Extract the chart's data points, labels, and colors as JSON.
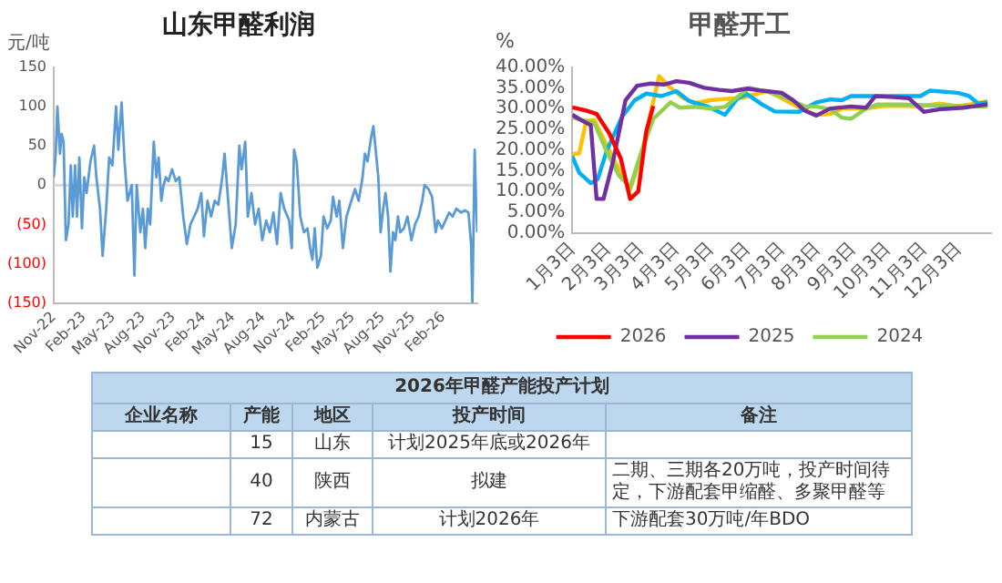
{
  "chart_data": [
    {
      "type": "line",
      "title": "山东甲醛利润",
      "ylabel": "元/吨",
      "color": "#5b9bd5",
      "marker": "none",
      "x": [
        "2022-11-01",
        "2022-11-07",
        "2022-11-12",
        "2022-11-20",
        "2022-11-25",
        "2022-12-01",
        "2022-12-08",
        "2022-12-16",
        "2022-12-23",
        "2022-12-29",
        "2023-01-05",
        "2023-01-11",
        "2023-01-18",
        "2023-01-26",
        "2023-02-02",
        "2023-02-09",
        "2023-02-21",
        "2023-03-04",
        "2023-03-11",
        "2023-03-22",
        "2023-03-30",
        "2023-04-10",
        "2023-04-19",
        "2023-04-29",
        "2023-05-10",
        "2023-05-17",
        "2023-05-27",
        "2023-06-05",
        "2023-06-14",
        "2023-06-27",
        "2023-07-05",
        "2023-07-12",
        "2023-07-23",
        "2023-07-31",
        "2023-08-07",
        "2023-08-15",
        "2023-08-22",
        "2023-09-02",
        "2023-09-10",
        "2023-09-17",
        "2023-09-25",
        "2023-10-02",
        "2023-10-09",
        "2023-10-17",
        "2023-10-28",
        "2023-11-08",
        "2023-11-19",
        "2023-12-01",
        "2023-12-12",
        "2023-12-23",
        "2024-01-03",
        "2024-01-14",
        "2024-01-25",
        "2024-02-02",
        "2024-02-13",
        "2024-02-24",
        "2024-03-06",
        "2024-03-17",
        "2024-03-29",
        "2024-04-05",
        "2024-04-16",
        "2024-04-27",
        "2024-05-09",
        "2024-05-20",
        "2024-05-27",
        "2024-06-07",
        "2024-06-15",
        "2024-06-26",
        "2024-07-07",
        "2024-07-18",
        "2024-07-29",
        "2024-08-10",
        "2024-08-21",
        "2024-09-01",
        "2024-09-12",
        "2024-09-23",
        "2024-10-04",
        "2024-10-19",
        "2024-10-27",
        "2024-11-03",
        "2024-11-11",
        "2024-11-22",
        "2024-12-03",
        "2024-12-14",
        "2024-12-22",
        "2024-12-29",
        "2025-01-05",
        "2025-01-13",
        "2025-01-24",
        "2025-02-01",
        "2025-02-12",
        "2025-02-23",
        "2025-03-02",
        "2025-03-13",
        "2025-03-21",
        "2025-04-01",
        "2025-04-12",
        "2025-04-23",
        "2025-05-08",
        "2025-05-19",
        "2025-05-31",
        "2025-06-07",
        "2025-06-15",
        "2025-06-26",
        "2025-07-03",
        "2025-07-11",
        "2025-07-18",
        "2025-07-25",
        "2025-08-02",
        "2025-08-09",
        "2025-08-17",
        "2025-08-24",
        "2025-09-01",
        "2025-09-08",
        "2025-09-16",
        "2025-09-23",
        "2025-10-04",
        "2025-10-15",
        "2025-10-27",
        "2025-11-07",
        "2025-11-18",
        "2025-11-29",
        "2025-12-06",
        "2025-12-18",
        "2025-12-29",
        "2026-01-09",
        "2026-01-16",
        "2026-01-28",
        "2026-02-08",
        "2026-02-19",
        "2026-03-02",
        "2026-03-13",
        "2026-03-28",
        "2026-04-08",
        "2026-04-19",
        "2026-04-27",
        "2026-05-01",
        "2026-05-08",
        "2026-05-12",
        "2026-05-16"
      ],
      "values": [
        10,
        40,
        100,
        40,
        65,
        55,
        -70,
        -50,
        25,
        -40,
        25,
        -40,
        35,
        -55,
        10,
        -10,
        30,
        50,
        10,
        -30,
        -90,
        -30,
        35,
        25,
        100,
        45,
        105,
        30,
        -20,
        0,
        -115,
        0,
        -60,
        -30,
        -80,
        -30,
        -50,
        55,
        10,
        35,
        -20,
        0,
        10,
        5,
        20,
        5,
        10,
        -40,
        -75,
        -50,
        -40,
        -30,
        -10,
        -65,
        -20,
        -40,
        -20,
        -25,
        10,
        40,
        -20,
        -80,
        -50,
        50,
        20,
        55,
        -40,
        -10,
        -50,
        -30,
        -70,
        -45,
        -60,
        -35,
        -75,
        -10,
        -30,
        -45,
        -80,
        45,
        30,
        -40,
        -60,
        -55,
        -80,
        -95,
        -55,
        -105,
        -90,
        -40,
        -55,
        -45,
        -15,
        -40,
        -20,
        -80,
        -40,
        -25,
        -5,
        -20,
        10,
        40,
        30,
        60,
        75,
        40,
        10,
        -60,
        -30,
        -10,
        -40,
        -110,
        -60,
        -70,
        -40,
        -60,
        -55,
        -40,
        -70,
        -50,
        -40,
        -20,
        0,
        -5,
        -15,
        -60,
        -45,
        -55,
        -45,
        -35,
        -40,
        -30,
        -35,
        -32,
        -35,
        -75,
        -150,
        45,
        -20,
        -60
      ],
      "xlim": [
        "2022-11-01",
        "2026-05-16"
      ],
      "xticks": [
        {
          "value": "2022-11-01",
          "label": "Nov-22"
        },
        {
          "value": "2023-02-01",
          "label": "Feb-23"
        },
        {
          "value": "2023-05-01",
          "label": "May-23"
        },
        {
          "value": "2023-08-01",
          "label": "Aug-23"
        },
        {
          "value": "2023-11-01",
          "label": "Nov-23"
        },
        {
          "value": "2024-02-01",
          "label": "Feb-24"
        },
        {
          "value": "2024-05-01",
          "label": "May-24"
        },
        {
          "value": "2024-08-01",
          "label": "Aug-24"
        },
        {
          "value": "2024-11-01",
          "label": "Nov-24"
        },
        {
          "value": "2025-02-01",
          "label": "Feb-25"
        },
        {
          "value": "2025-05-01",
          "label": "May-25"
        },
        {
          "value": "2025-08-01",
          "label": "Aug-25"
        },
        {
          "value": "2025-11-01",
          "label": "Nov-25"
        },
        {
          "value": "2026-02-01",
          "label": "Feb-26"
        }
      ],
      "ylim": [
        -150,
        150
      ],
      "yticks": [
        {
          "value": -150,
          "label": "(150)"
        },
        {
          "value": -100,
          "label": "(100)"
        },
        {
          "value": -50,
          "label": "(50)"
        },
        0,
        50,
        100,
        150
      ],
      "ref_lines": [
        {
          "axis": "y",
          "value": 0,
          "color": "#d9d9d9"
        }
      ]
    },
    {
      "type": "line",
      "title": "甲醛开工",
      "ylabel": "%",
      "marker": "none",
      "legend": "bottom",
      "series": [
        {
          "name": "2026",
          "color": "#ff0000",
          "x": [
            "--01-03",
            "--01-15",
            "--01-24",
            "--02-04",
            "--02-14",
            "--02-22",
            "--03-01",
            "--03-08",
            "--03-14"
          ],
          "values": [
            30.3,
            29.5,
            28.7,
            24,
            17.9,
            8.2,
            10,
            24.5,
            30.6
          ]
        },
        {
          "name": "2025",
          "color": "#7030a0",
          "x": [
            "--01-03",
            "--01-12",
            "--01-19",
            "--01-24",
            "--01-30",
            "--02-07",
            "--02-18",
            "--02-28",
            "--03-11",
            "--03-24",
            "--04-03",
            "--04-14",
            "--04-27",
            "--05-10",
            "--05-21",
            "--06-03",
            "--06-16",
            "--07-03",
            "--07-13",
            "--07-23",
            "--08-02",
            "--08-14",
            "--09-01",
            "--09-14",
            "--09-22",
            "--10-05",
            "--10-21",
            "--11-03",
            "--11-16",
            "--12-07",
            "--12-28"
          ],
          "values": [
            28.5,
            27,
            26,
            8.2,
            8.2,
            17,
            32,
            35.5,
            36,
            35.8,
            36.6,
            36.2,
            35,
            34.5,
            34.2,
            34.8,
            34.3,
            33.8,
            32,
            29.5,
            28.3,
            30,
            30.5,
            30.2,
            33,
            32.8,
            32.5,
            29.2,
            29.8,
            30.2,
            31
          ]
        },
        {
          "name": "2024",
          "color": "#92d050",
          "x": [
            "--01-03",
            "--01-12",
            "--01-22",
            "--02-02",
            "--02-12",
            "--02-22",
            "--03-03",
            "--03-14",
            "--03-29",
            "--04-06",
            "--04-19",
            "--05-02",
            "--05-15",
            "--05-29",
            "--06-05",
            "--06-21",
            "--07-03",
            "--07-23",
            "--08-02",
            "--08-14",
            "--08-24",
            "--09-01",
            "--09-14",
            "--09-24",
            "--10-15",
            "--11-03",
            "--11-26",
            "--12-12",
            "--12-28"
          ],
          "values": [
            27.8,
            27.2,
            26.5,
            19.5,
            14,
            11,
            19,
            27.5,
            31.5,
            30.2,
            30.4,
            30,
            30.4,
            33.5,
            35,
            34,
            33,
            30.5,
            30.5,
            29.8,
            27.8,
            27.5,
            30,
            31,
            31,
            30.8,
            30.6,
            30.5,
            30.5
          ]
        },
        {
          "color": "#00b0f0",
          "x": [
            "--01-03",
            "--01-09",
            "--01-19",
            "--01-25",
            "--02-02",
            "--02-15",
            "--02-26",
            "--03-08",
            "--03-21",
            "--04-03",
            "--04-14",
            "--04-30",
            "--05-15",
            "--05-26",
            "--06-03",
            "--06-16",
            "--06-27",
            "--07-18",
            "--08-02",
            "--08-14",
            "--08-24",
            "--09-01",
            "--10-05",
            "--10-31",
            "--11-08",
            "--12-02",
            "--12-12",
            "--12-20",
            "--12-28"
          ],
          "values": [
            18.5,
            14.5,
            12,
            13,
            20,
            28,
            32,
            33.6,
            33,
            34.2,
            31.8,
            30.5,
            28.5,
            32.5,
            33.5,
            31,
            29.3,
            29.2,
            31.5,
            32.2,
            32,
            33,
            33,
            33,
            34.3,
            33.8,
            33,
            31.2,
            31.5
          ]
        },
        {
          "color": "#ffc000",
          "x": [
            "--01-03",
            "--01-09",
            "--01-15",
            "--01-22",
            "--02-02",
            "--02-12",
            "--02-22",
            "--03-03",
            "--03-11",
            "--03-19",
            "--03-29",
            "--04-09",
            "--04-19",
            "--05-02",
            "--05-15",
            "--05-29",
            "--06-11",
            "--06-21",
            "--07-03",
            "--07-23",
            "--08-02",
            "--08-14",
            "--08-24",
            "--09-14",
            "--09-29",
            "--10-15",
            "--10-31",
            "--11-16",
            "--12-02",
            "--12-18",
            "--12-28"
          ],
          "values": [
            19,
            19.2,
            27,
            27.2,
            21,
            15.5,
            10.5,
            18,
            28,
            37.8,
            35,
            32.5,
            31.3,
            32,
            32.3,
            32.5,
            33.5,
            34.2,
            32.5,
            29.5,
            28.5,
            28.7,
            30,
            30,
            30.6,
            30.7,
            30.5,
            31.2,
            30.6,
            31.2,
            31.8
          ]
        }
      ],
      "xlim": [
        "--01-03",
        "--12-31"
      ],
      "xticks": [
        {
          "value": "--01-03",
          "label": "1月3日"
        },
        {
          "value": "--02-03",
          "label": "2月3日"
        },
        {
          "value": "--03-03",
          "label": "3月3日"
        },
        {
          "value": "--04-03",
          "label": "4月3日"
        },
        {
          "value": "--05-03",
          "label": "5月3日"
        },
        {
          "value": "--06-03",
          "label": "6月3日"
        },
        {
          "value": "--07-03",
          "label": "7月3日"
        },
        {
          "value": "--08-03",
          "label": "8月3日"
        },
        {
          "value": "--09-03",
          "label": "9月3日"
        },
        {
          "value": "--10-03",
          "label": "10月3日"
        },
        {
          "value": "--11-03",
          "label": "11月3日"
        },
        {
          "value": "--12-03",
          "label": "12月3日"
        }
      ],
      "ylim": [
        0,
        40
      ],
      "yticks": [
        {
          "value": 0,
          "label": "0.00%"
        },
        {
          "value": 5,
          "label": "5.00%"
        },
        {
          "value": 10,
          "label": "10.00%"
        },
        {
          "value": 15,
          "label": "15.00%"
        },
        {
          "value": 20,
          "label": "20.00%"
        },
        {
          "value": 25,
          "label": "25.00%"
        },
        {
          "value": 30,
          "label": "30.00%"
        },
        {
          "value": 35,
          "label": "35.00%"
        },
        {
          "value": 40,
          "label": "40.00%"
        }
      ]
    },
    {
      "type": "other",
      "title": "2026年甲醛产能投产计划",
      "categories": [
        "企业名称",
        "产能",
        "地区",
        "投产时间",
        "备注"
      ],
      "cells": [
        [
          null,
          "15",
          "山东",
          "计划2025年底或2026年",
          null
        ],
        [
          null,
          "40",
          "陕西",
          "拟建",
          "二期、三期各20万吨，投产时间待定，下游配套甲缩醛、多聚甲醛等"
        ],
        [
          null,
          "72",
          "内蒙古",
          "计划2026年",
          "下游配套30万吨/年BDO"
        ]
      ]
    }
  ]
}
